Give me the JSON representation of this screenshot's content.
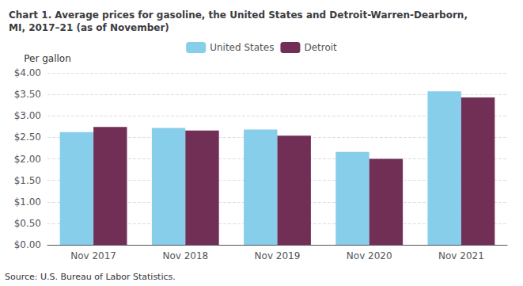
{
  "chart_data": {
    "type": "bar",
    "title": "Chart 1. Average prices for gasoline, the United States and Detroit-Warren-Dearborn,\nMI, 2017–21 (as of November)",
    "ylabel": "Per gallon",
    "annotations": [
      "Source: U.S. Bureau of Labor Statistics."
    ],
    "categories": [
      "Nov 2017",
      "Nov 2018",
      "Nov 2019",
      "Nov 2020",
      "Nov 2021"
    ],
    "series": [
      {
        "name": "United States",
        "color": "#87CEEB",
        "values": [
          2.62,
          2.72,
          2.68,
          2.16,
          3.57
        ]
      },
      {
        "name": "Detroit",
        "color": "#722F56",
        "values": [
          2.74,
          2.66,
          2.54,
          2.0,
          3.43
        ]
      }
    ],
    "ylim": [
      0,
      4.0
    ],
    "yticks": [
      {
        "value": 0.0,
        "label": "$0.00"
      },
      {
        "value": 0.5,
        "label": "$0.50"
      },
      {
        "value": 1.0,
        "label": "$1.00"
      },
      {
        "value": 1.5,
        "label": "$1.50"
      },
      {
        "value": 2.0,
        "label": "$2.00"
      },
      {
        "value": 2.5,
        "label": "$2.50"
      },
      {
        "value": 3.0,
        "label": "$3.00"
      },
      {
        "value": 3.5,
        "label": "$3.50"
      },
      {
        "value": 4.0,
        "label": "$4.00"
      }
    ],
    "grid": true,
    "legend": "top"
  }
}
